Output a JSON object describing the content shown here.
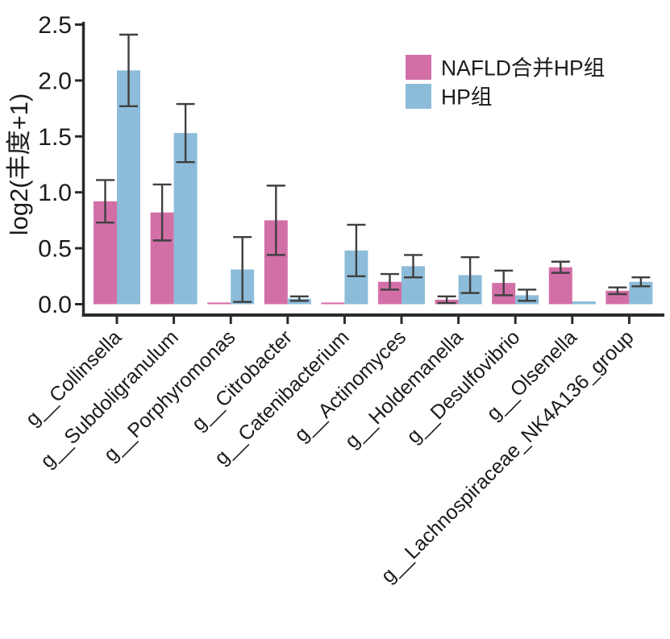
{
  "chart_data": {
    "type": "bar",
    "title": "",
    "xlabel": "",
    "ylabel": "log2(丰度+1)",
    "ylim": [
      0,
      2.5
    ],
    "yticks": [
      0.0,
      0.5,
      1.0,
      1.5,
      2.0,
      2.5
    ],
    "ytick_decimals": 1,
    "grid": false,
    "legend_position": "top-right-inside",
    "categories": [
      "g__Collinsella",
      "g__Subdoligranulum",
      "g__Porphyromonas",
      "g__Citrobacter",
      "g__Catenibacterium",
      "g__Actinomyces",
      "g__Holdemanella",
      "g__Desulfovibrio",
      "g__Olsenella",
      "g__Lachnospiraceae_NK4A136_group"
    ],
    "series": [
      {
        "name": "NAFLD合并HP组",
        "color": "#d36fa7",
        "values": [
          0.92,
          0.82,
          0.015,
          0.75,
          0.015,
          0.2,
          0.04,
          0.19,
          0.33,
          0.12
        ],
        "errors": [
          0.19,
          0.25,
          0,
          0.31,
          0,
          0.07,
          0.03,
          0.11,
          0.05,
          0.03
        ]
      },
      {
        "name": "HP组",
        "color": "#8cbcd9",
        "values": [
          2.09,
          1.53,
          0.31,
          0.05,
          0.48,
          0.34,
          0.26,
          0.08,
          0.025,
          0.2
        ],
        "errors": [
          0.32,
          0.26,
          0.29,
          0.02,
          0.23,
          0.1,
          0.16,
          0.05,
          0,
          0.04
        ]
      }
    ],
    "style_colors": {
      "axis": "#2b2b2b",
      "error_bar": "#3f3f3f",
      "text": "#1b1b1b",
      "background": "#ffffff"
    }
  }
}
